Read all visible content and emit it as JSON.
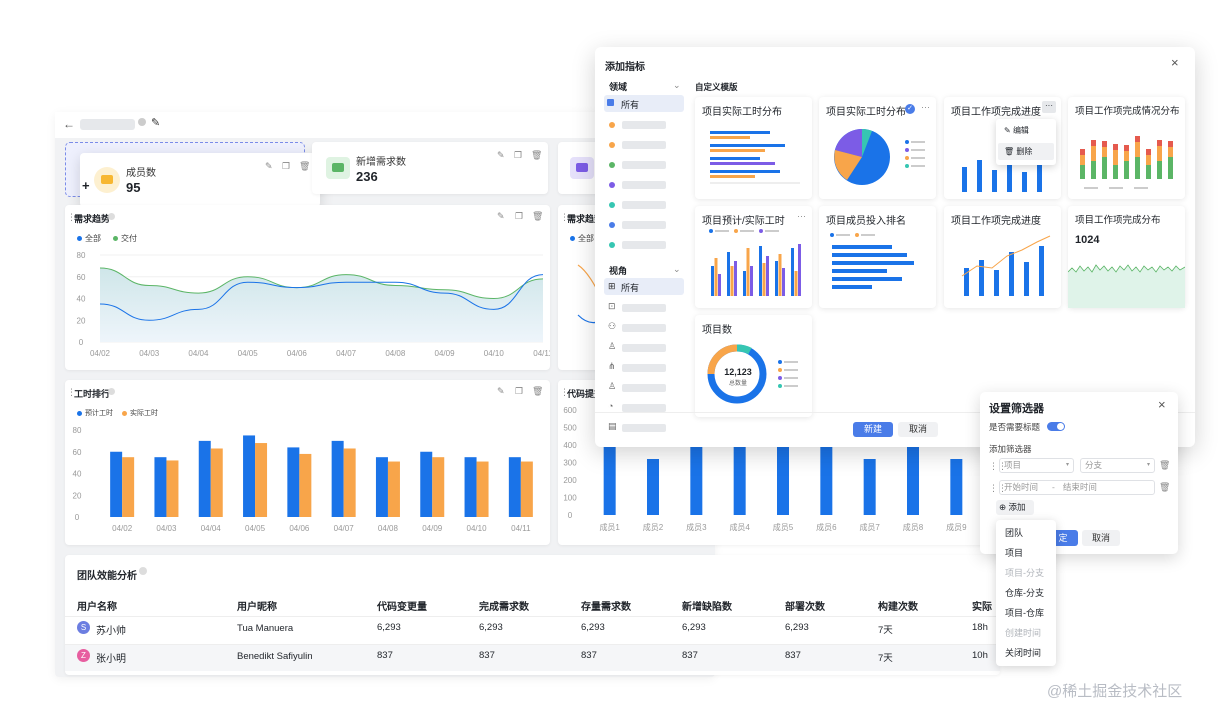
{
  "colors": {
    "blue": "#1a73e8",
    "orange": "#f8a54a",
    "green": "#5bb566",
    "purple": "#7c5ce6",
    "accent": "#4a7ce8",
    "teal": "#36c6b2"
  },
  "dashboard": {
    "stats": [
      {
        "label": "成员数",
        "value": "95"
      },
      {
        "label": "新增需求数",
        "value": "236"
      }
    ],
    "trend": {
      "title": "需求趋势",
      "legend": [
        "全部",
        "交付"
      ],
      "y_ticks": [
        "80",
        "60",
        "40",
        "20",
        "0"
      ],
      "x_ticks": [
        "04/02",
        "04/03",
        "04/04",
        "04/05",
        "04/06",
        "04/07",
        "04/08",
        "04/09",
        "04/10",
        "04/11"
      ]
    },
    "trend2": {
      "title": "需求趋势",
      "legend0": "全部"
    },
    "hours": {
      "title": "工时排行",
      "legend": [
        "预计工时",
        "实际工时"
      ],
      "y_ticks": [
        "80",
        "60",
        "40",
        "20",
        "0"
      ]
    },
    "code": {
      "title": "代码提交",
      "y_ticks": [
        "600",
        "500",
        "400",
        "300",
        "200",
        "100",
        "0"
      ],
      "x_ticks": [
        "成员1",
        "成员2",
        "成员3",
        "成员4",
        "成员5",
        "成员6",
        "成员7",
        "成员8",
        "成员9"
      ]
    },
    "team": {
      "title": "团队效能分析",
      "headers": [
        "用户名称",
        "用户昵称",
        "代码变更量",
        "完成需求数",
        "存量需求数",
        "新增缺陷数",
        "部署次数",
        "构建次数",
        "实际"
      ],
      "rows": [
        {
          "avatar": "S",
          "name": "苏小帅",
          "nick": "Tua Manuera",
          "v": [
            "6,293",
            "6,293",
            "6,293",
            "6,293",
            "6,293",
            "7天",
            "18h"
          ]
        },
        {
          "avatar": "Z",
          "name": "张小明",
          "nick": "Benedikt Safiyulin",
          "v": [
            "837",
            "837",
            "837",
            "837",
            "837",
            "7天",
            "10h"
          ]
        }
      ]
    }
  },
  "chart_data": [
    {
      "type": "area",
      "title": "需求趋势",
      "categories": [
        "04/02",
        "04/03",
        "04/04",
        "04/05",
        "04/06",
        "04/07",
        "04/08",
        "04/09",
        "04/10",
        "04/11"
      ],
      "ylim": [
        0,
        80
      ],
      "series": [
        {
          "name": "全部",
          "values": [
            35,
            20,
            30,
            55,
            50,
            55,
            55,
            45,
            30,
            62
          ]
        },
        {
          "name": "交付",
          "values": [
            68,
            52,
            45,
            60,
            50,
            62,
            52,
            48,
            40,
            58
          ]
        }
      ]
    },
    {
      "type": "bar",
      "title": "工时排行",
      "categories": [
        "04/02",
        "04/03",
        "04/04",
        "04/05",
        "04/06",
        "04/07",
        "04/08",
        "04/09",
        "04/10",
        "04/11"
      ],
      "ylim": [
        0,
        80
      ],
      "series": [
        {
          "name": "预计工时",
          "values": [
            60,
            55,
            70,
            75,
            64,
            70,
            55,
            60,
            55,
            55
          ]
        },
        {
          "name": "实际工时",
          "values": [
            55,
            52,
            63,
            68,
            58,
            63,
            51,
            55,
            51,
            51
          ]
        }
      ]
    },
    {
      "type": "bar",
      "title": "代码提交",
      "categories": [
        "成员1",
        "成员2",
        "成员3",
        "成员4",
        "成员5",
        "成员6",
        "成员7",
        "成员8",
        "成员9"
      ],
      "ylim": [
        0,
        600
      ],
      "series": [
        {
          "name": "代码提交",
          "values": [
            400,
            320,
            460,
            400,
            420,
            460,
            320,
            400,
            320
          ]
        }
      ]
    }
  ],
  "modal": {
    "title": "添加指标",
    "domain_label": "领域",
    "all": "所有",
    "view_label": "视角",
    "all2": "所有",
    "section": "自定义模版",
    "templates": [
      "项目实际工时分布",
      "项目实际工时分布",
      "项目工作项完成进度",
      "项目工作项完成情况分布",
      "项目预计/实际工时",
      "项目成员投入排名",
      "项目工作项完成进度",
      "项目工作项完成分布",
      "项目数"
    ],
    "ctx_menu": [
      "编辑",
      "删除"
    ],
    "big_value": "1024",
    "donut_value": "12,123",
    "donut_sub": "总数量",
    "new_btn": "新建",
    "cancel_btn": "取消"
  },
  "filter": {
    "title": "设置筛选器",
    "need_title": "是否需要标题",
    "add_filter": "添加筛选器",
    "sel1": "项目",
    "sel2": "分支",
    "start": "开始时间",
    "end": "结束时间",
    "add": "添加",
    "ok": "定",
    "cancel": "取消"
  },
  "menu": {
    "items": [
      "团队",
      "项目",
      "项目-分支",
      "仓库-分支",
      "项目-仓库",
      "创建时间",
      "关闭时间"
    ]
  },
  "watermark": "@稀土掘金技术社区"
}
